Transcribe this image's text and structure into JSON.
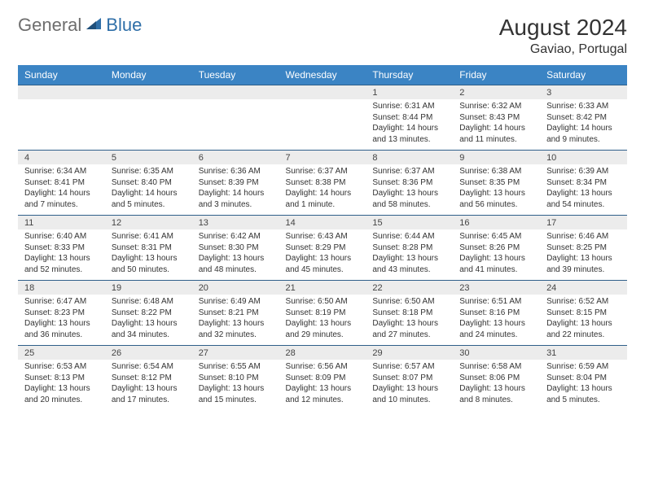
{
  "brand": {
    "part1": "General",
    "part2": "Blue"
  },
  "title": "August 2024",
  "location": "Gaviao, Portugal",
  "colors": {
    "header_bg": "#3b84c4",
    "header_text": "#ffffff",
    "date_bg": "#ececec",
    "border": "#2f5f8a",
    "brand_gray": "#6e6e6e",
    "brand_blue": "#2f6fa8"
  },
  "dayNames": [
    "Sunday",
    "Monday",
    "Tuesday",
    "Wednesday",
    "Thursday",
    "Friday",
    "Saturday"
  ],
  "startOffset": 4,
  "daysInMonth": 31,
  "days": {
    "1": {
      "sunrise": "6:31 AM",
      "sunset": "8:44 PM",
      "daylight": "14 hours and 13 minutes."
    },
    "2": {
      "sunrise": "6:32 AM",
      "sunset": "8:43 PM",
      "daylight": "14 hours and 11 minutes."
    },
    "3": {
      "sunrise": "6:33 AM",
      "sunset": "8:42 PM",
      "daylight": "14 hours and 9 minutes."
    },
    "4": {
      "sunrise": "6:34 AM",
      "sunset": "8:41 PM",
      "daylight": "14 hours and 7 minutes."
    },
    "5": {
      "sunrise": "6:35 AM",
      "sunset": "8:40 PM",
      "daylight": "14 hours and 5 minutes."
    },
    "6": {
      "sunrise": "6:36 AM",
      "sunset": "8:39 PM",
      "daylight": "14 hours and 3 minutes."
    },
    "7": {
      "sunrise": "6:37 AM",
      "sunset": "8:38 PM",
      "daylight": "14 hours and 1 minute."
    },
    "8": {
      "sunrise": "6:37 AM",
      "sunset": "8:36 PM",
      "daylight": "13 hours and 58 minutes."
    },
    "9": {
      "sunrise": "6:38 AM",
      "sunset": "8:35 PM",
      "daylight": "13 hours and 56 minutes."
    },
    "10": {
      "sunrise": "6:39 AM",
      "sunset": "8:34 PM",
      "daylight": "13 hours and 54 minutes."
    },
    "11": {
      "sunrise": "6:40 AM",
      "sunset": "8:33 PM",
      "daylight": "13 hours and 52 minutes."
    },
    "12": {
      "sunrise": "6:41 AM",
      "sunset": "8:31 PM",
      "daylight": "13 hours and 50 minutes."
    },
    "13": {
      "sunrise": "6:42 AM",
      "sunset": "8:30 PM",
      "daylight": "13 hours and 48 minutes."
    },
    "14": {
      "sunrise": "6:43 AM",
      "sunset": "8:29 PM",
      "daylight": "13 hours and 45 minutes."
    },
    "15": {
      "sunrise": "6:44 AM",
      "sunset": "8:28 PM",
      "daylight": "13 hours and 43 minutes."
    },
    "16": {
      "sunrise": "6:45 AM",
      "sunset": "8:26 PM",
      "daylight": "13 hours and 41 minutes."
    },
    "17": {
      "sunrise": "6:46 AM",
      "sunset": "8:25 PM",
      "daylight": "13 hours and 39 minutes."
    },
    "18": {
      "sunrise": "6:47 AM",
      "sunset": "8:23 PM",
      "daylight": "13 hours and 36 minutes."
    },
    "19": {
      "sunrise": "6:48 AM",
      "sunset": "8:22 PM",
      "daylight": "13 hours and 34 minutes."
    },
    "20": {
      "sunrise": "6:49 AM",
      "sunset": "8:21 PM",
      "daylight": "13 hours and 32 minutes."
    },
    "21": {
      "sunrise": "6:50 AM",
      "sunset": "8:19 PM",
      "daylight": "13 hours and 29 minutes."
    },
    "22": {
      "sunrise": "6:50 AM",
      "sunset": "8:18 PM",
      "daylight": "13 hours and 27 minutes."
    },
    "23": {
      "sunrise": "6:51 AM",
      "sunset": "8:16 PM",
      "daylight": "13 hours and 24 minutes."
    },
    "24": {
      "sunrise": "6:52 AM",
      "sunset": "8:15 PM",
      "daylight": "13 hours and 22 minutes."
    },
    "25": {
      "sunrise": "6:53 AM",
      "sunset": "8:13 PM",
      "daylight": "13 hours and 20 minutes."
    },
    "26": {
      "sunrise": "6:54 AM",
      "sunset": "8:12 PM",
      "daylight": "13 hours and 17 minutes."
    },
    "27": {
      "sunrise": "6:55 AM",
      "sunset": "8:10 PM",
      "daylight": "13 hours and 15 minutes."
    },
    "28": {
      "sunrise": "6:56 AM",
      "sunset": "8:09 PM",
      "daylight": "13 hours and 12 minutes."
    },
    "29": {
      "sunrise": "6:57 AM",
      "sunset": "8:07 PM",
      "daylight": "13 hours and 10 minutes."
    },
    "30": {
      "sunrise": "6:58 AM",
      "sunset": "8:06 PM",
      "daylight": "13 hours and 8 minutes."
    },
    "31": {
      "sunrise": "6:59 AM",
      "sunset": "8:04 PM",
      "daylight": "13 hours and 5 minutes."
    }
  }
}
